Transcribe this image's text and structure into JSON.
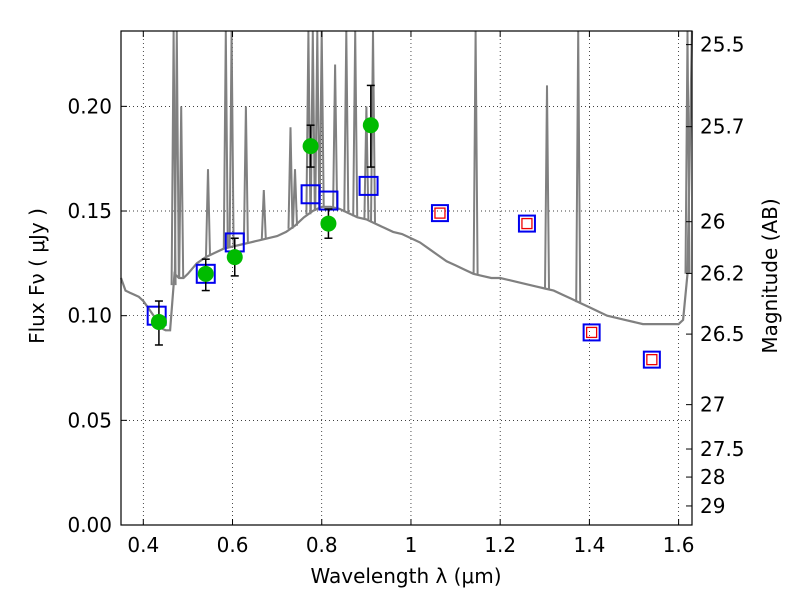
{
  "chart_data": {
    "type": "scatter",
    "xlabel": "Wavelength  λ (μm)",
    "ylabel": "Flux  Fν  ( μJy )",
    "y2label": "Magnitude (AB)",
    "xlim": [
      0.35,
      1.63
    ],
    "ylim": [
      0.0,
      0.236
    ],
    "grid": true,
    "xticks": [
      0.4,
      0.6,
      0.8,
      1.0,
      1.2,
      1.4,
      1.6
    ],
    "xtick_labels": [
      "0.4",
      "0.6",
      "0.8",
      "1",
      "1.2",
      "1.4",
      "1.6"
    ],
    "yticks": [
      0.0,
      0.05,
      0.1,
      0.15,
      0.2
    ],
    "ytick_labels": [
      "0.00",
      "0.05",
      "0.10",
      "0.15",
      "0.20"
    ],
    "y2ticks": [
      {
        "flux": 0.2295,
        "label": "25.5"
      },
      {
        "flux": 0.1903,
        "label": "25.7"
      },
      {
        "flux": 0.1449,
        "label": "26"
      },
      {
        "flux": 0.1202,
        "label": "26.2"
      },
      {
        "flux": 0.0912,
        "label": "26.5"
      },
      {
        "flux": 0.0575,
        "label": "27"
      },
      {
        "flux": 0.0363,
        "label": "27.5"
      },
      {
        "flux": 0.0229,
        "label": "28"
      },
      {
        "flux": 0.0091,
        "label": "29"
      }
    ],
    "colors": {
      "observed": "#00bb00",
      "model_square": "#0000ee",
      "upper_square": "#ee0000",
      "template": "#808080",
      "errorbar": "#000000"
    },
    "series": [
      {
        "marker": "filled-circle",
        "x": [
          0.435,
          0.54,
          0.605,
          0.775,
          0.815,
          0.91
        ],
        "y": [
          0.097,
          0.12,
          0.128,
          0.181,
          0.144,
          0.191
        ],
        "yerr_low": [
          0.086,
          0.112,
          0.119,
          0.171,
          0.137,
          0.171
        ],
        "yerr_high": [
          0.107,
          0.127,
          0.137,
          0.191,
          0.151,
          0.21
        ]
      },
      {
        "marker": "open-square",
        "x": [
          0.43,
          0.54,
          0.605,
          0.775,
          0.815,
          0.905
        ],
        "y": [
          0.1,
          0.12,
          0.135,
          0.158,
          0.155,
          0.162
        ]
      },
      {
        "marker": "open-square-with-inner-square",
        "x": [
          1.065,
          1.26,
          1.405,
          1.54
        ],
        "y": [
          0.149,
          0.144,
          0.092,
          0.079
        ]
      },
      {
        "marker": "line",
        "x": [
          0.35,
          0.36,
          0.37,
          0.38,
          0.39,
          0.4,
          0.41,
          0.42,
          0.43,
          0.44,
          0.45,
          0.46,
          0.47,
          0.48,
          0.49,
          0.5,
          0.52,
          0.54,
          0.56,
          0.58,
          0.6,
          0.62,
          0.64,
          0.66,
          0.68,
          0.7,
          0.72,
          0.74,
          0.76,
          0.78,
          0.8,
          0.82,
          0.84,
          0.86,
          0.88,
          0.9,
          0.92,
          0.94,
          0.96,
          0.98,
          1.0,
          1.02,
          1.04,
          1.06,
          1.08,
          1.1,
          1.12,
          1.14,
          1.16,
          1.18,
          1.2,
          1.22,
          1.24,
          1.26,
          1.28,
          1.3,
          1.32,
          1.34,
          1.36,
          1.38,
          1.4,
          1.42,
          1.44,
          1.46,
          1.48,
          1.5,
          1.52,
          1.54,
          1.56,
          1.58,
          1.6,
          1.61,
          1.62,
          1.63
        ],
        "y": [
          0.118,
          0.112,
          0.111,
          0.11,
          0.109,
          0.107,
          0.104,
          0.101,
          0.098,
          0.094,
          0.093,
          0.093,
          0.12,
          0.118,
          0.118,
          0.12,
          0.125,
          0.128,
          0.13,
          0.132,
          0.133,
          0.134,
          0.135,
          0.136,
          0.137,
          0.138,
          0.14,
          0.143,
          0.147,
          0.15,
          0.152,
          0.152,
          0.151,
          0.149,
          0.147,
          0.146,
          0.144,
          0.142,
          0.14,
          0.139,
          0.137,
          0.135,
          0.132,
          0.129,
          0.126,
          0.124,
          0.122,
          0.12,
          0.119,
          0.118,
          0.118,
          0.117,
          0.116,
          0.115,
          0.114,
          0.113,
          0.112,
          0.11,
          0.108,
          0.106,
          0.104,
          0.102,
          0.1,
          0.099,
          0.098,
          0.097,
          0.096,
          0.096,
          0.096,
          0.096,
          0.096,
          0.098,
          0.12,
          0.236
        ]
      },
      {
        "marker": "emission-spikes",
        "x": [
          0.468,
          0.475,
          0.485,
          0.545,
          0.585,
          0.598,
          0.63,
          0.67,
          0.73,
          0.74,
          0.77,
          0.78,
          0.79,
          0.8,
          0.83,
          0.855,
          0.875,
          0.9,
          0.915,
          1.145,
          1.305,
          1.375,
          1.62
        ],
        "y": [
          0.236,
          0.236,
          0.2,
          0.17,
          0.236,
          0.236,
          0.2,
          0.16,
          0.19,
          0.17,
          0.236,
          0.236,
          0.236,
          0.236,
          0.22,
          0.236,
          0.236,
          0.2,
          0.236,
          0.236,
          0.21,
          0.236,
          0.236
        ]
      }
    ]
  }
}
